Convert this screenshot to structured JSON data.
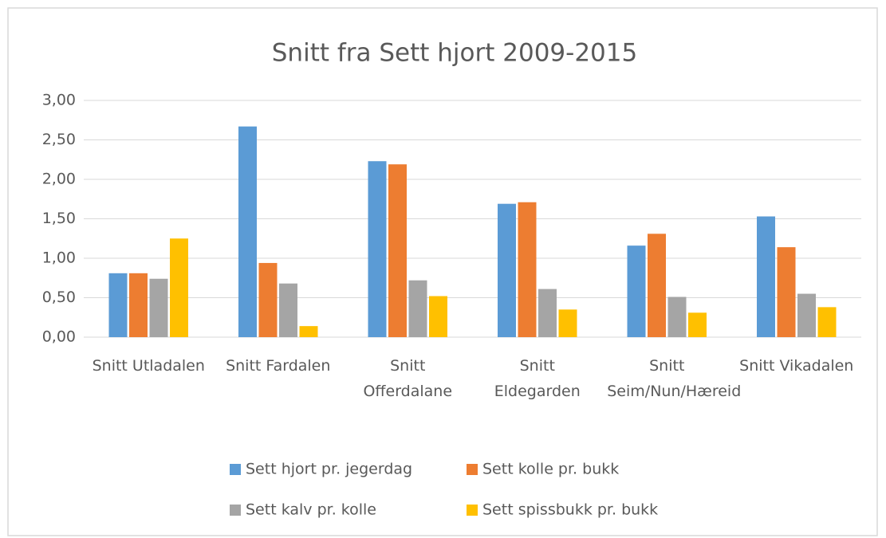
{
  "chart_data": {
    "type": "bar",
    "title": "Snitt fra Sett hjort 2009-2015",
    "categories": [
      "Snitt Utladalen",
      "Snitt Fardalen",
      "Snitt Offerdalane",
      "Snitt Eldegarden",
      "Snitt Seim/Nun/Hæreid",
      "Snitt Vikadalen"
    ],
    "series": [
      {
        "name": "Sett hjort pr. jegerdag",
        "color": "#5b9bd5",
        "values": [
          0.81,
          2.67,
          2.23,
          1.69,
          1.16,
          1.53
        ]
      },
      {
        "name": "Sett kolle pr. bukk",
        "color": "#ed7d31",
        "values": [
          0.81,
          0.94,
          2.19,
          1.71,
          1.31,
          1.14
        ]
      },
      {
        "name": "Sett kalv pr. kolle",
        "color": "#a5a5a5",
        "values": [
          0.74,
          0.68,
          0.72,
          0.61,
          0.51,
          0.55
        ]
      },
      {
        "name": "Sett spissbukk pr. bukk",
        "color": "#ffc000",
        "values": [
          1.25,
          0.14,
          0.52,
          0.35,
          0.31,
          0.38
        ]
      }
    ],
    "ylim": [
      0,
      3
    ],
    "yticks": [
      {
        "value": 0,
        "label": "0,00"
      },
      {
        "value": 0.5,
        "label": "0,50"
      },
      {
        "value": 1,
        "label": "1,00"
      },
      {
        "value": 1.5,
        "label": "1,50"
      },
      {
        "value": 2,
        "label": "2,00"
      },
      {
        "value": 2.5,
        "label": "2,50"
      },
      {
        "value": 3,
        "label": "3,00"
      }
    ],
    "grid": true,
    "legend": "bottom"
  }
}
